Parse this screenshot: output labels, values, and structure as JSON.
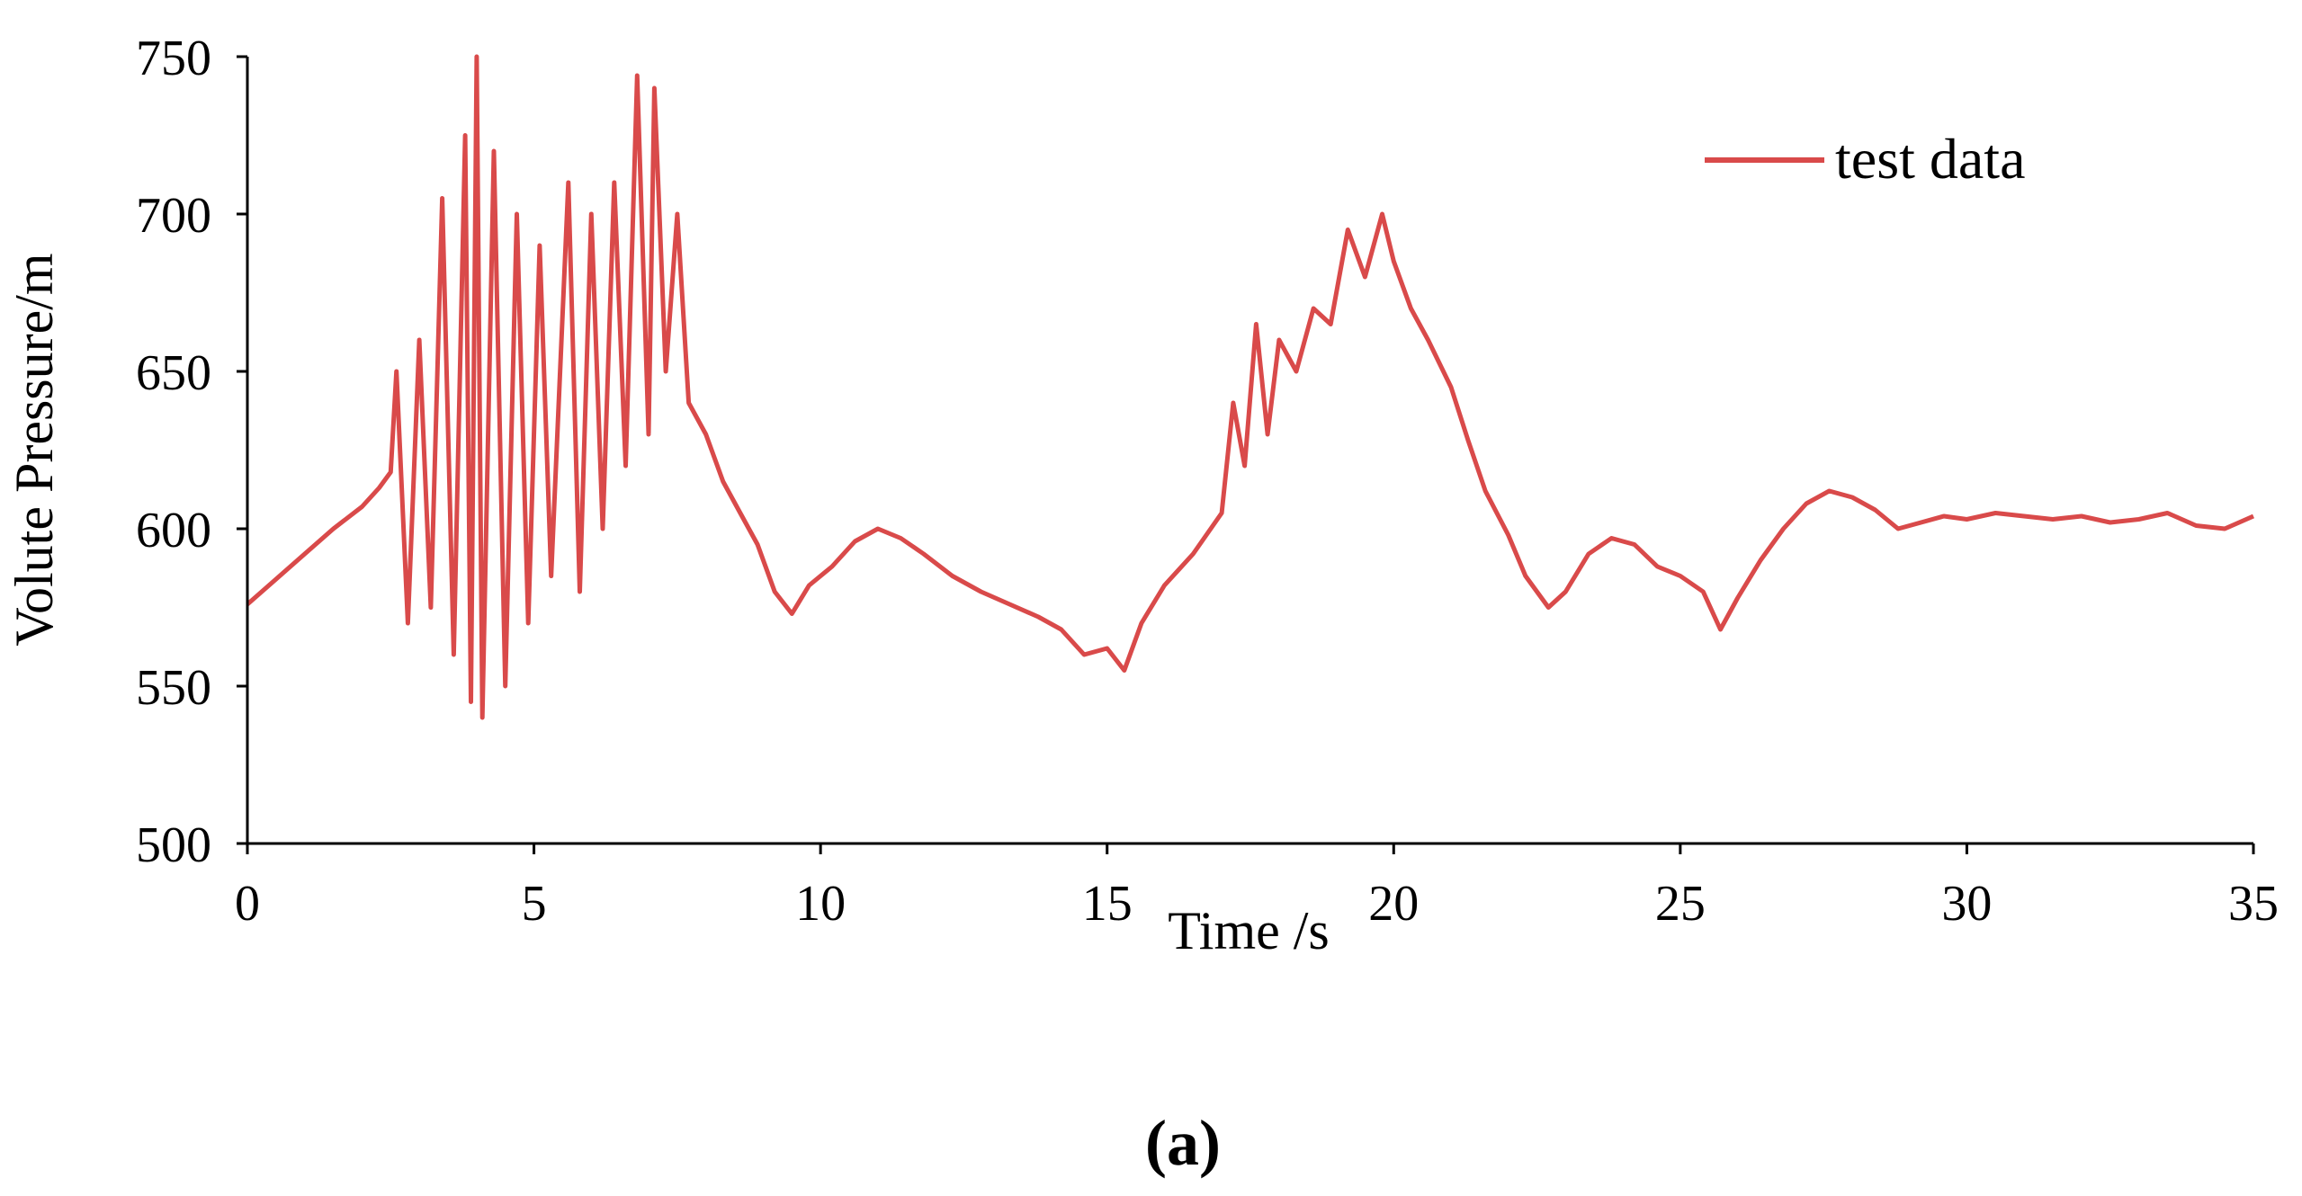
{
  "chart_data": {
    "type": "line",
    "title": "",
    "xlabel": "Time /s",
    "ylabel": "Volute Pressure/m",
    "xlim": [
      0,
      35
    ],
    "ylim": [
      500,
      750
    ],
    "xticks": [
      0,
      5,
      10,
      15,
      20,
      25,
      30,
      35
    ],
    "yticks": [
      500,
      550,
      600,
      650,
      700,
      750
    ],
    "grid": false,
    "legend": {
      "position": "top-right",
      "entries": [
        "test data"
      ]
    },
    "panel_label": "(a)",
    "series": [
      {
        "name": "test data",
        "color": "#d94a4a",
        "points": [
          [
            0,
            576
          ],
          [
            0.5,
            584
          ],
          [
            1,
            592
          ],
          [
            1.5,
            600
          ],
          [
            2,
            607
          ],
          [
            2.3,
            613
          ],
          [
            2.5,
            618
          ],
          [
            2.6,
            650
          ],
          [
            2.8,
            570
          ],
          [
            3.0,
            660
          ],
          [
            3.2,
            575
          ],
          [
            3.4,
            705
          ],
          [
            3.6,
            560
          ],
          [
            3.8,
            725
          ],
          [
            3.9,
            545
          ],
          [
            4.0,
            750
          ],
          [
            4.1,
            540
          ],
          [
            4.3,
            720
          ],
          [
            4.5,
            550
          ],
          [
            4.7,
            700
          ],
          [
            4.9,
            570
          ],
          [
            5.1,
            690
          ],
          [
            5.3,
            585
          ],
          [
            5.6,
            710
          ],
          [
            5.8,
            580
          ],
          [
            6.0,
            700
          ],
          [
            6.2,
            600
          ],
          [
            6.4,
            710
          ],
          [
            6.6,
            620
          ],
          [
            6.8,
            744
          ],
          [
            7.0,
            630
          ],
          [
            7.1,
            740
          ],
          [
            7.3,
            650
          ],
          [
            7.5,
            700
          ],
          [
            7.7,
            640
          ],
          [
            8.0,
            630
          ],
          [
            8.3,
            615
          ],
          [
            8.6,
            605
          ],
          [
            8.9,
            595
          ],
          [
            9.2,
            580
          ],
          [
            9.5,
            573
          ],
          [
            9.8,
            582
          ],
          [
            10.2,
            588
          ],
          [
            10.6,
            596
          ],
          [
            11.0,
            600
          ],
          [
            11.4,
            597
          ],
          [
            11.8,
            592
          ],
          [
            12.3,
            585
          ],
          [
            12.8,
            580
          ],
          [
            13.3,
            576
          ],
          [
            13.8,
            572
          ],
          [
            14.2,
            568
          ],
          [
            14.6,
            560
          ],
          [
            15.0,
            562
          ],
          [
            15.3,
            555
          ],
          [
            15.6,
            570
          ],
          [
            16.0,
            582
          ],
          [
            16.5,
            592
          ],
          [
            17.0,
            605
          ],
          [
            17.2,
            640
          ],
          [
            17.4,
            620
          ],
          [
            17.6,
            665
          ],
          [
            17.8,
            630
          ],
          [
            18.0,
            660
          ],
          [
            18.3,
            650
          ],
          [
            18.6,
            670
          ],
          [
            18.9,
            665
          ],
          [
            19.2,
            695
          ],
          [
            19.5,
            680
          ],
          [
            19.8,
            700
          ],
          [
            20.0,
            685
          ],
          [
            20.3,
            670
          ],
          [
            20.6,
            660
          ],
          [
            21.0,
            645
          ],
          [
            21.3,
            628
          ],
          [
            21.6,
            612
          ],
          [
            22.0,
            598
          ],
          [
            22.3,
            585
          ],
          [
            22.7,
            575
          ],
          [
            23.0,
            580
          ],
          [
            23.4,
            592
          ],
          [
            23.8,
            597
          ],
          [
            24.2,
            595
          ],
          [
            24.6,
            588
          ],
          [
            25.0,
            585
          ],
          [
            25.4,
            580
          ],
          [
            25.7,
            568
          ],
          [
            26.0,
            578
          ],
          [
            26.4,
            590
          ],
          [
            26.8,
            600
          ],
          [
            27.2,
            608
          ],
          [
            27.6,
            612
          ],
          [
            28.0,
            610
          ],
          [
            28.4,
            606
          ],
          [
            28.8,
            600
          ],
          [
            29.2,
            602
          ],
          [
            29.6,
            604
          ],
          [
            30.0,
            603
          ],
          [
            30.5,
            605
          ],
          [
            31.0,
            604
          ],
          [
            31.5,
            603
          ],
          [
            32.0,
            604
          ],
          [
            32.5,
            602
          ],
          [
            33.0,
            603
          ],
          [
            33.5,
            605
          ],
          [
            34.0,
            601
          ],
          [
            34.5,
            600
          ],
          [
            35.0,
            604
          ]
        ]
      }
    ]
  }
}
